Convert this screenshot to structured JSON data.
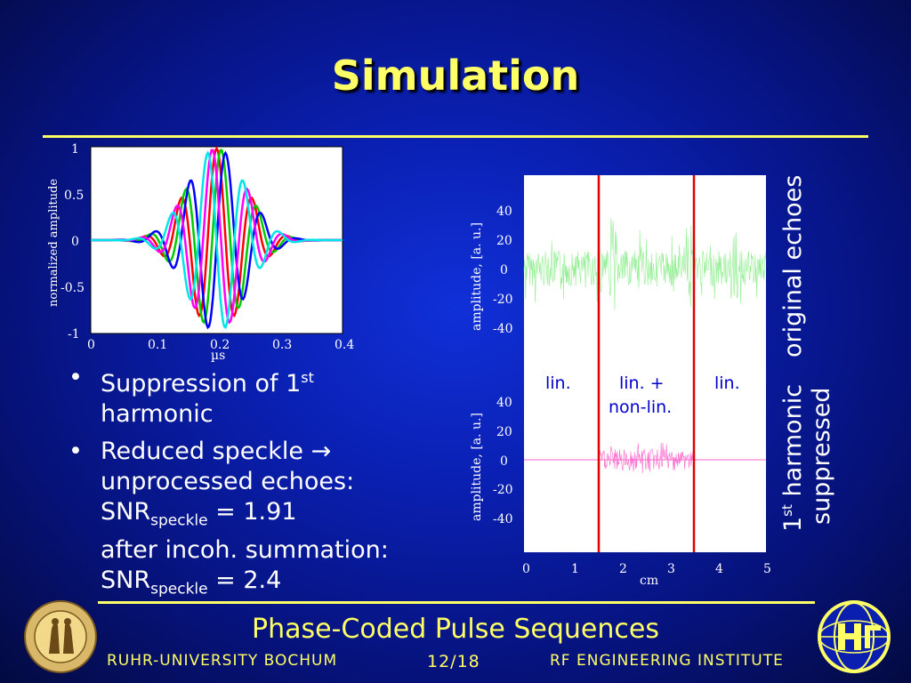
{
  "slide": {
    "title": "Simulation",
    "footer_title": "Phase-Coded Pulse Sequences",
    "footer_left": "Ruhr-University Bochum",
    "footer_page": "12/18",
    "footer_right": "RF Engineering Institute",
    "accent": "#ffff66"
  },
  "bullets": [
    {
      "main": "Suppression of 1",
      "sup": "st",
      "rest": "harmonic"
    },
    {
      "line1a": "Reduced speckle ",
      "arrow": "→",
      "line2": "unprocessed echoes:",
      "snr1_pre": "SNR",
      "snr1_sub": "speckle",
      "snr1_val": " = 1.91",
      "line4": "after incoh. summation:",
      "snr2_pre": "SNR",
      "snr2_sub": "speckle",
      "snr2_val": " = 2.4"
    }
  ],
  "chart_left": {
    "ylabel": "normalized amplitude",
    "xlabel": "µs",
    "xticks": [
      "0",
      "0.1",
      "0.2",
      "0.3",
      "0.4"
    ],
    "yticks": [
      "1",
      "0.5",
      "0",
      "-0.5",
      "-1"
    ]
  },
  "chart_right": {
    "ylabel_top": "amplitude, [a. u.]",
    "ylabel_bottom": "amplitude, [a. u.]",
    "xlabel": "cm",
    "xticks": [
      "0",
      "1",
      "2",
      "3",
      "4",
      "5"
    ],
    "yticks_top": [
      "40",
      "20",
      "0",
      "-20",
      "-40"
    ],
    "yticks_bottom": [
      "40",
      "20",
      "0",
      "-20",
      "-40"
    ],
    "region_left": "lin.",
    "region_mid1": "lin. +",
    "region_mid2": "non-lin.",
    "region_right": "lin."
  },
  "side_labels": {
    "top": "original echoes",
    "bottom_main": "1",
    "bottom_sup": "st",
    "bottom_rest": " harmonic",
    "bottom_line2": "suppressed"
  },
  "chart_data": [
    {
      "type": "line",
      "xlabel": "µs",
      "ylabel": "normalized amplitude",
      "xlim": [
        0,
        0.4
      ],
      "ylim": [
        -1,
        1
      ],
      "series": [
        {
          "color": "#ff0000",
          "shape": "gaussian-modulated sine",
          "peak_x": 0.2
        },
        {
          "color": "#00cc00",
          "shape": "gaussian-modulated sine"
        },
        {
          "color": "#0000ff",
          "shape": "gaussian-modulated sine"
        },
        {
          "color": "#ff00ff",
          "shape": "gaussian-modulated sine"
        },
        {
          "color": "#00e5e5",
          "shape": "gaussian-modulated sine"
        }
      ]
    },
    {
      "type": "line",
      "xlabel": "cm",
      "ylabel": "amplitude, [a. u.]",
      "xlim": [
        0,
        5
      ],
      "ylim": [
        -50,
        50
      ],
      "markers_x": [
        1.5,
        3.5
      ],
      "series": [
        {
          "color": "#90ee90",
          "shape": "speckle noise, amplitude ~20"
        }
      ]
    },
    {
      "type": "line",
      "xlabel": "cm",
      "ylabel": "amplitude, [a. u.]",
      "xlim": [
        0,
        5
      ],
      "ylim": [
        -50,
        50
      ],
      "markers_x": [
        1.5,
        3.5
      ],
      "series": [
        {
          "color": "#ff66cc",
          "shape": "noise only between 1.5 and 3.5 cm, amplitude ~12"
        }
      ]
    }
  ]
}
